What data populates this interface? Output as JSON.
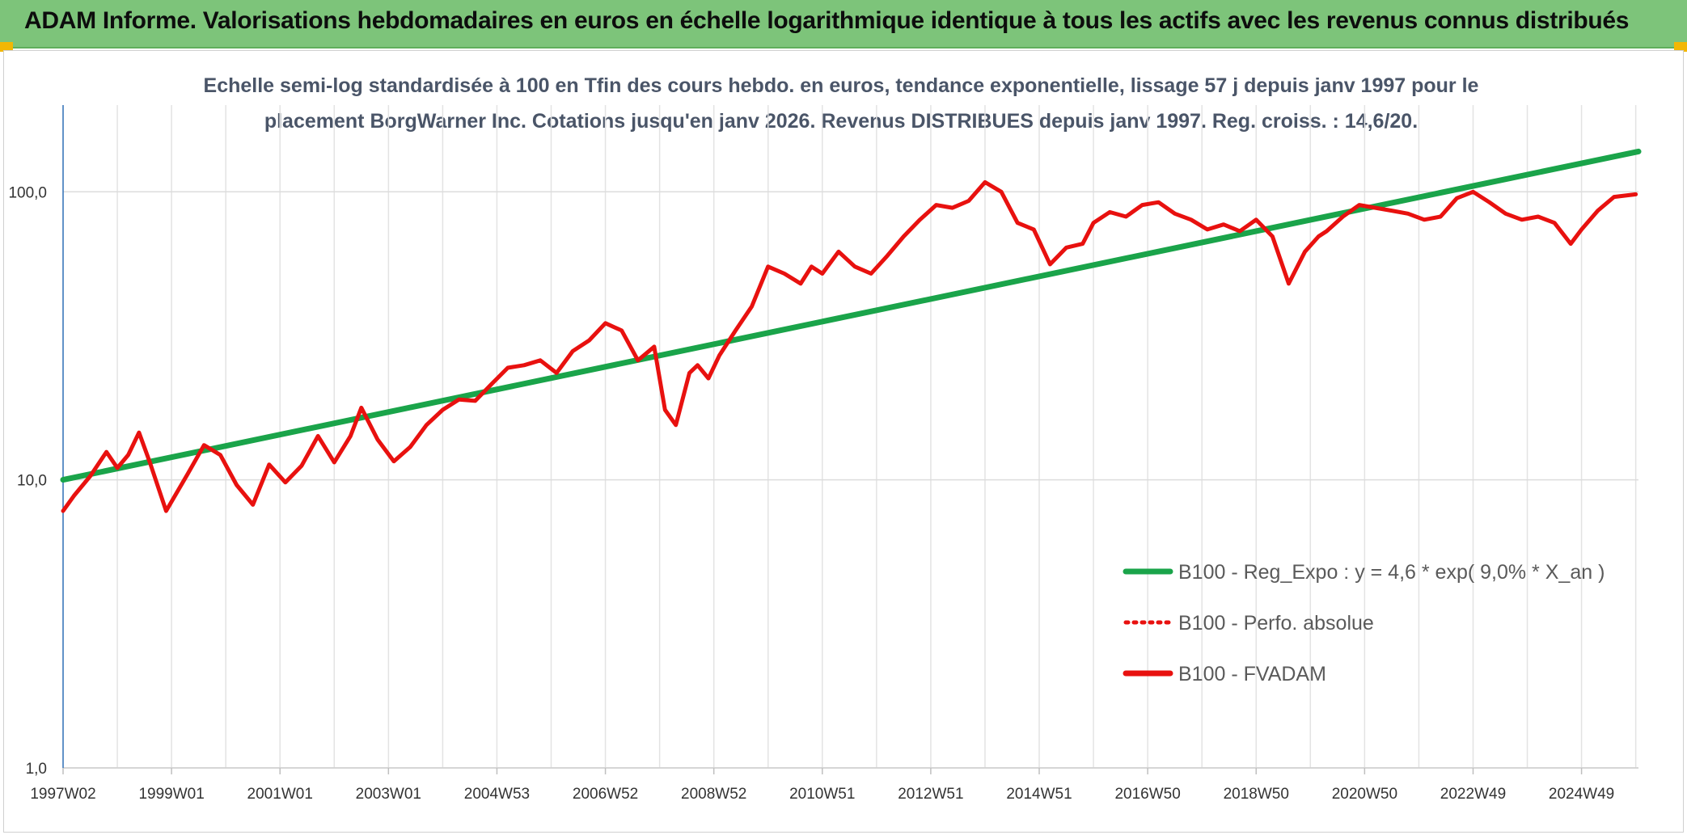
{
  "header": {
    "title": "ADAM Informe. Valorisations hebdomadaires en euros en échelle logarithmique identique à tous les actifs avec les revenus connus distribués",
    "background": "#7dc47a"
  },
  "chart_data": {
    "type": "line",
    "title_lines": [
      "Echelle semi-log standardisée à 100 en Tfin des cours hebdo. en euros, tendance exponentielle, lissage 57 j depuis janv 1997 pour le",
      "placement BorgWarner Inc. Cotations jusqu'en janv 2026. Revenus DISTRIBUES depuis janv 1997. Reg. croiss. : 14,6/20."
    ],
    "y_scale": "log",
    "ylim": [
      1,
      200
    ],
    "y_ticks": [
      {
        "value": 1,
        "label": "1,0"
      },
      {
        "value": 10,
        "label": "10,0"
      },
      {
        "value": 100,
        "label": "100,0"
      }
    ],
    "xlim": [
      1997.0,
      2026.05
    ],
    "x_ticks": [
      {
        "value": 1997.0,
        "label": "1997W02"
      },
      {
        "value": 1999.0,
        "label": "1999W01"
      },
      {
        "value": 2001.0,
        "label": "2001W01"
      },
      {
        "value": 2003.0,
        "label": "2003W01"
      },
      {
        "value": 2005.0,
        "label": "2004W53"
      },
      {
        "value": 2007.0,
        "label": "2006W52"
      },
      {
        "value": 2009.0,
        "label": "2008W52"
      },
      {
        "value": 2011.0,
        "label": "2010W51"
      },
      {
        "value": 2013.0,
        "label": "2012W51"
      },
      {
        "value": 2015.0,
        "label": "2014W51"
      },
      {
        "value": 2017.0,
        "label": "2016W50"
      },
      {
        "value": 2019.0,
        "label": "2018W50"
      },
      {
        "value": 2021.0,
        "label": "2020W50"
      },
      {
        "value": 2023.0,
        "label": "2022W49"
      },
      {
        "value": 2025.0,
        "label": "2024W49"
      }
    ],
    "grid": true,
    "legend_position": "right",
    "series": [
      {
        "name": "B100 - Reg_Expo : y = 4,6 * exp( 9,0% *  X_an )",
        "color": "#1aa44a",
        "style": "solid",
        "x": [
          1997.0,
          2026.05
        ],
        "values": [
          10.0,
          138.0
        ]
      },
      {
        "name": "B100 - Perfo. absolue",
        "color": "#e8110f",
        "style": "dotted",
        "x": [],
        "values": []
      },
      {
        "name": "B100 - FVADAM",
        "color": "#e8110f",
        "style": "solid",
        "x": [
          1997.0,
          1997.2,
          1997.5,
          1997.8,
          1998.0,
          1998.2,
          1998.4,
          1998.6,
          1998.9,
          1999.3,
          1999.6,
          1999.9,
          2000.2,
          2000.5,
          2000.8,
          2001.1,
          2001.4,
          2001.7,
          2002.0,
          2002.3,
          2002.5,
          2002.8,
          2003.1,
          2003.4,
          2003.7,
          2004.0,
          2004.3,
          2004.6,
          2004.9,
          2005.2,
          2005.5,
          2005.8,
          2006.1,
          2006.4,
          2006.7,
          2007.0,
          2007.3,
          2007.6,
          2007.9,
          2008.1,
          2008.3,
          2008.55,
          2008.7,
          2008.9,
          2009.1,
          2009.4,
          2009.7,
          2010.0,
          2010.3,
          2010.6,
          2010.8,
          2011.0,
          2011.3,
          2011.6,
          2011.9,
          2012.2,
          2012.5,
          2012.8,
          2013.1,
          2013.4,
          2013.7,
          2014.0,
          2014.3,
          2014.6,
          2014.9,
          2015.2,
          2015.5,
          2015.8,
          2016.0,
          2016.3,
          2016.6,
          2016.9,
          2017.2,
          2017.5,
          2017.8,
          2018.1,
          2018.4,
          2018.7,
          2019.0,
          2019.3,
          2019.6,
          2019.9,
          2020.15,
          2020.3,
          2020.6,
          2020.9,
          2021.2,
          2021.5,
          2021.8,
          2022.1,
          2022.4,
          2022.7,
          2023.0,
          2023.3,
          2023.6,
          2023.9,
          2024.2,
          2024.5,
          2024.8,
          2025.0,
          2025.3,
          2025.6,
          2026.0
        ],
        "values": [
          7.8,
          8.8,
          10.3,
          12.5,
          11.0,
          12.2,
          14.6,
          11.5,
          7.8,
          10.5,
          13.2,
          12.2,
          9.6,
          8.2,
          11.3,
          9.8,
          11.2,
          14.2,
          11.5,
          14.2,
          17.8,
          13.8,
          11.6,
          13.0,
          15.5,
          17.5,
          19.0,
          18.8,
          21.5,
          24.5,
          25.0,
          26.0,
          23.5,
          28.0,
          30.5,
          35.0,
          33.0,
          26.0,
          29.0,
          17.5,
          15.5,
          23.5,
          25.0,
          22.5,
          27.0,
          33.0,
          40.0,
          55.0,
          52.0,
          48.0,
          55.0,
          52.0,
          62.0,
          55.0,
          52.0,
          60.0,
          70.0,
          80.0,
          90.0,
          88.0,
          93.0,
          108.0,
          100.0,
          78.0,
          74.0,
          56.0,
          64.0,
          66.0,
          78.0,
          85.0,
          82.0,
          90.0,
          92.0,
          84.0,
          80.0,
          74.0,
          77.0,
          73.0,
          80.0,
          70.0,
          48.0,
          62.0,
          70.0,
          73.0,
          82.0,
          90.0,
          88.0,
          86.0,
          84.0,
          80.0,
          82.0,
          95.0,
          100.0,
          92.0,
          84.0,
          80.0,
          82.0,
          78.0,
          66.0,
          74.0,
          86.0,
          96.0,
          98.0
        ]
      }
    ]
  }
}
